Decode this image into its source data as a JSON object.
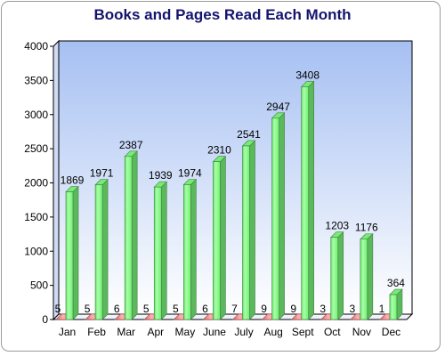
{
  "chart_data": {
    "type": "bar",
    "title": "Books and Pages Read Each Month",
    "xlabel": "",
    "ylabel": "",
    "categories": [
      "Jan",
      "Feb",
      "Mar",
      "Apr",
      "May",
      "June",
      "July",
      "Aug",
      "Sept",
      "Oct",
      "Nov",
      "Dec"
    ],
    "series": [
      {
        "values": [
          5,
          5,
          6,
          5,
          5,
          6,
          7,
          9,
          9,
          3,
          3,
          1
        ]
      },
      {
        "values": [
          1869,
          1971,
          2387,
          1939,
          1974,
          2310,
          2541,
          2947,
          3408,
          1203,
          1176,
          364
        ]
      }
    ],
    "ylim": [
      0,
      4000
    ],
    "yticks": [
      0,
      500,
      1000,
      1500,
      2000,
      2500,
      3000,
      3500,
      4000
    ],
    "grid": false,
    "legend": "none",
    "three_d": true,
    "colors": {
      "series_0": "#ff8080",
      "series_1": "#80ff80",
      "plot_background_top": "#a6c0f2",
      "plot_background_bottom": "#ffffff",
      "title": "#14146e"
    }
  }
}
